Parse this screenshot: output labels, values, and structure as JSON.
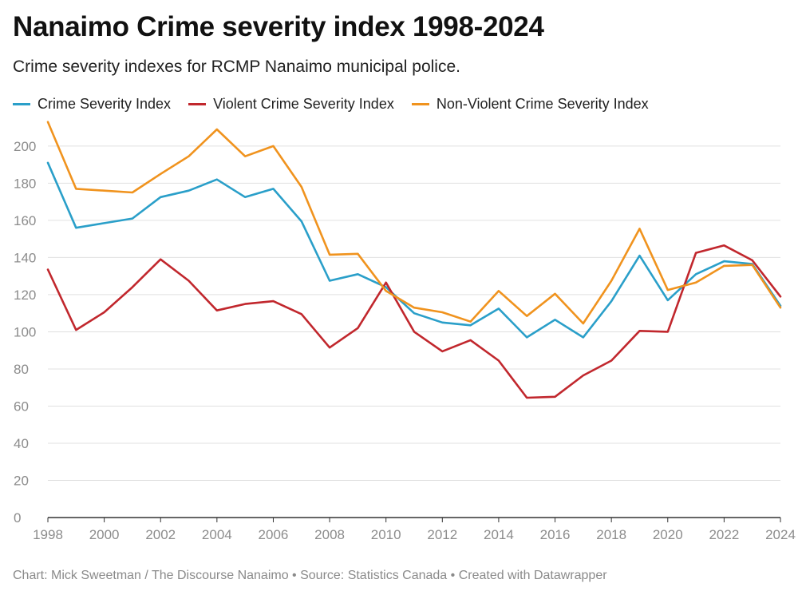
{
  "header": {
    "title": "Nanaimo Crime severity index 1998-2024",
    "subtitle": "Crime severity indexes for RCMP Nanaimo municipal police."
  },
  "footer": {
    "credit": "Chart: Mick Sweetman / The Discourse Nanaimo • Source: Statistics Canada • Created with Datawrapper"
  },
  "chart_data": {
    "type": "line",
    "title": "Nanaimo Crime severity index 1998-2024",
    "subtitle": "Crime severity indexes for RCMP Nanaimo municipal police.",
    "xlabel": "",
    "ylabel": "",
    "grid": true,
    "legend_position": "top-left",
    "xlim": [
      1998,
      2024
    ],
    "ylim": [
      0,
      215
    ],
    "y_ticks": [
      0,
      20,
      40,
      60,
      80,
      100,
      120,
      140,
      160,
      180,
      200
    ],
    "x_ticks": [
      1998,
      2000,
      2002,
      2004,
      2006,
      2008,
      2010,
      2012,
      2014,
      2016,
      2018,
      2020,
      2022,
      2024
    ],
    "x": [
      1998,
      1999,
      2000,
      2001,
      2002,
      2003,
      2004,
      2005,
      2006,
      2007,
      2008,
      2009,
      2010,
      2011,
      2012,
      2013,
      2014,
      2015,
      2016,
      2017,
      2018,
      2019,
      2020,
      2021,
      2022,
      2023,
      2024
    ],
    "series": [
      {
        "name": "Crime Severity Index",
        "color": "#2a9fc9",
        "values": [
          191,
          156,
          158.5,
          161,
          172.5,
          176,
          182,
          172.5,
          177,
          159.5,
          127.5,
          131,
          124,
          110,
          105,
          103.5,
          112.5,
          97,
          106.5,
          97,
          116.5,
          141,
          117,
          131,
          138,
          136.5,
          114
        ]
      },
      {
        "name": "Violent Crime Severity Index",
        "color": "#c1272d",
        "values": [
          133.5,
          101,
          110.5,
          124,
          139,
          127.5,
          111.5,
          115,
          116.5,
          109.5,
          91.5,
          102,
          126.5,
          100,
          89.5,
          95.5,
          84.5,
          64.5,
          65,
          76.5,
          84.5,
          100.5,
          100,
          142.5,
          146.5,
          138.5,
          119
        ]
      },
      {
        "name": "Non-Violent Crime Severity Index",
        "color": "#f0931e",
        "values": [
          213,
          177,
          176,
          175,
          185,
          194.5,
          209,
          194.5,
          200,
          178,
          141.5,
          142,
          122,
          113,
          110.5,
          105.5,
          122,
          108.5,
          120.5,
          104.5,
          127.5,
          155.5,
          122.5,
          126.5,
          135.5,
          136,
          113
        ]
      }
    ]
  }
}
